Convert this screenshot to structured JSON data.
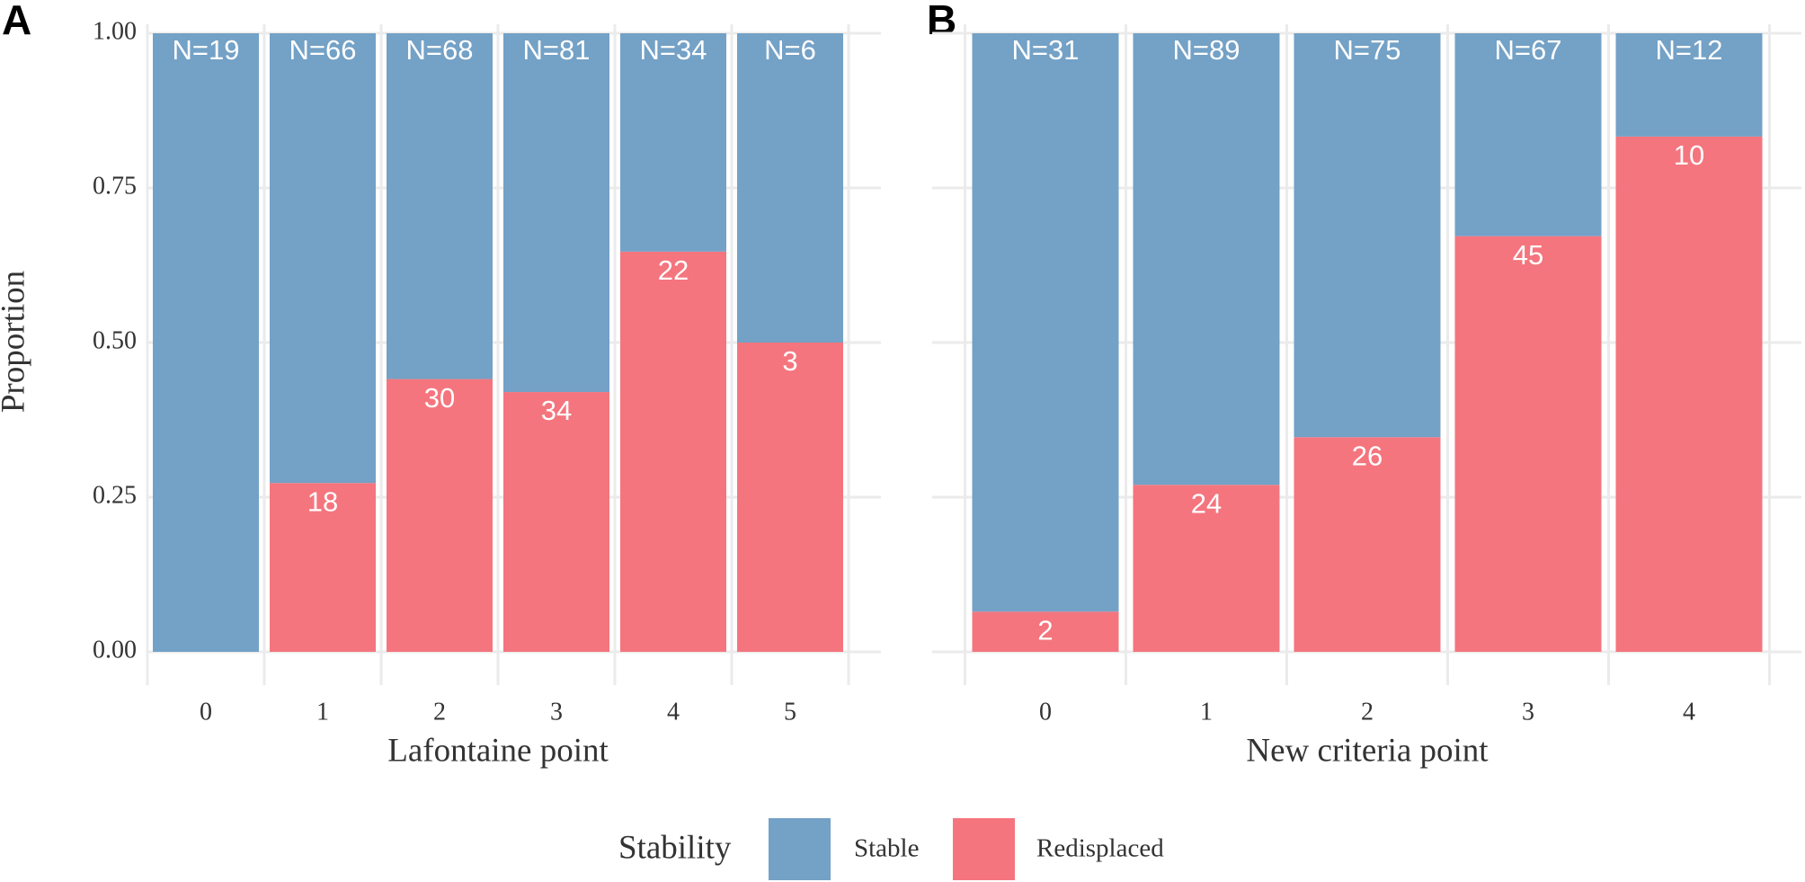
{
  "chart_data": [
    {
      "type": "stacked_bar",
      "panel": "A",
      "xlabel": "Lafontaine point",
      "ylabel": "Proportion",
      "categories": [
        "0",
        "1",
        "2",
        "3",
        "4",
        "5"
      ],
      "series": [
        {
          "name": "Redisplaced",
          "color": "#f4757e",
          "values": [
            0,
            0.273,
            0.441,
            0.42,
            0.647,
            0.5
          ],
          "count_labels": [
            null,
            18,
            30,
            34,
            22,
            3
          ]
        },
        {
          "name": "Stable",
          "color": "#74a1c6",
          "values": [
            1,
            0.727,
            0.559,
            0.58,
            0.353,
            0.5
          ]
        }
      ],
      "total_labels": [
        "N=19",
        "N=66",
        "N=68",
        "N=81",
        "N=34",
        "N=6"
      ],
      "ylim": [
        0,
        1
      ],
      "yticks": [
        {
          "value": 0,
          "label": "0.00"
        },
        {
          "value": 0.25,
          "label": "0.25"
        },
        {
          "value": 0.5,
          "label": "0.50"
        },
        {
          "value": 0.75,
          "label": "0.75"
        },
        {
          "value": 1,
          "label": "1.00"
        }
      ],
      "show_ytick_labels": true,
      "grid": true,
      "legend": "bottom",
      "legend_title": "Stability"
    },
    {
      "type": "stacked_bar",
      "panel": "B",
      "xlabel": "New criteria point",
      "categories": [
        "0",
        "1",
        "2",
        "3",
        "4"
      ],
      "series": [
        {
          "name": "Redisplaced",
          "color": "#f4757e",
          "values": [
            0.065,
            0.27,
            0.347,
            0.672,
            0.833
          ],
          "count_labels": [
            2,
            24,
            26,
            45,
            10
          ]
        },
        {
          "name": "Stable",
          "color": "#74a1c6",
          "values": [
            0.935,
            0.73,
            0.653,
            0.328,
            0.167
          ]
        }
      ],
      "total_labels": [
        "N=31",
        "N=89",
        "N=75",
        "N=67",
        "N=12"
      ],
      "ylim": [
        0,
        1
      ],
      "yticks": [
        0,
        0.25,
        0.5,
        0.75,
        1
      ],
      "show_ytick_labels": false,
      "grid": true,
      "legend": "none"
    }
  ]
}
